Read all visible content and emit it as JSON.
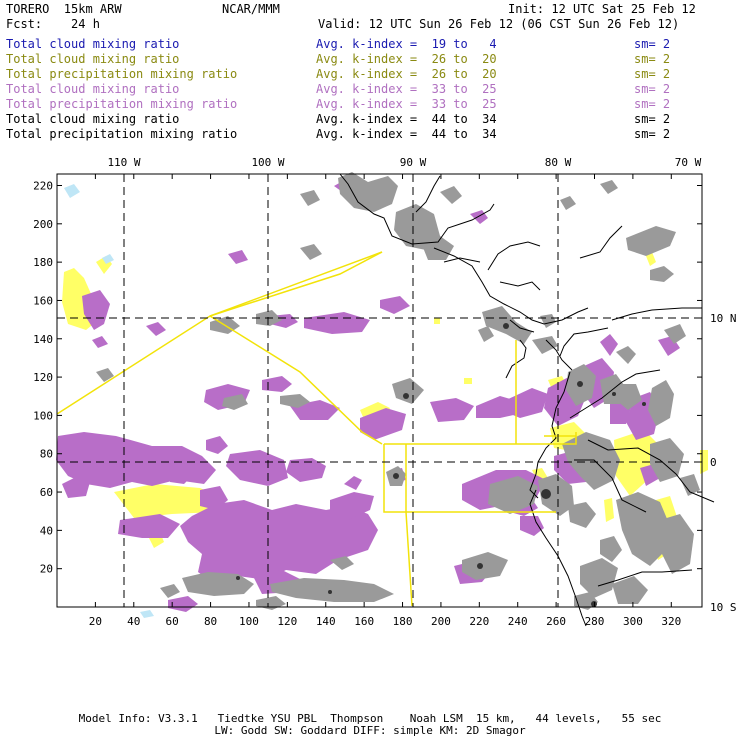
{
  "header": {
    "model": "TORERO  15km ARW",
    "org": "NCAR/MMM",
    "init": "Init: 12 UTC Sat 25 Feb 12",
    "fcst": "Fcst:    24 h",
    "valid": "Valid: 12 UTC Sun 26 Feb 12 (06 CST Sun 26 Feb 12)"
  },
  "legend": [
    {
      "name": "Total cloud mixing ratio",
      "kidx": "Avg. k-index =  19 to   4",
      "sm": "sm= 2",
      "color": "#1a1ab0"
    },
    {
      "name": "Total cloud mixing ratio",
      "kidx": "Avg. k-index =  26 to  20",
      "sm": "sm= 2",
      "color": "#8a8a12"
    },
    {
      "name": "Total precipitation mixing ratio",
      "kidx": "Avg. k-index =  26 to  20",
      "sm": "sm= 2",
      "color": "#8a8a12"
    },
    {
      "name": "Total cloud mixing ratio",
      "kidx": "Avg. k-index =  33 to  25",
      "sm": "sm= 2",
      "color": "#b070c0"
    },
    {
      "name": "Total precipitation mixing ratio",
      "kidx": "Avg. k-index =  33 to  25",
      "sm": "sm= 2",
      "color": "#b070c0"
    },
    {
      "name": "Total cloud mixing ratio",
      "kidx": "Avg. k-index =  44 to  34",
      "sm": "sm= 2",
      "color": "#000000"
    },
    {
      "name": "Total precipitation mixing ratio",
      "kidx": "Avg. k-index =  44 to  34",
      "sm": "sm= 2",
      "color": "#000000"
    }
  ],
  "map": {
    "top_labels": [
      "110 W",
      "100 W",
      "90 W",
      "80 W",
      "70 W"
    ],
    "right_labels": [
      "10 N",
      "0",
      "10 S"
    ],
    "x_ticks": [
      "20",
      "40",
      "60",
      "80",
      "100",
      "120",
      "140",
      "160",
      "180",
      "200",
      "220",
      "240",
      "260",
      "280",
      "300",
      "320"
    ],
    "y_ticks": [
      "20",
      "40",
      "60",
      "80",
      "100",
      "120",
      "140",
      "160",
      "180",
      "200",
      "220"
    ],
    "colors": {
      "gray": "#9a9a9a",
      "purple": "#b86ec8",
      "yellow": "#ffff66",
      "lightblue": "#bfe6f6",
      "box": "#f2e30a"
    }
  },
  "footer": {
    "line1": "Model Info: V3.3.1   Tiedtke YSU PBL  Thompson    Noah LSM  15 km,   44 levels,   55 sec",
    "line2": "LW: Godd SW: Goddard DIFF: simple KM: 2D Smagor"
  }
}
